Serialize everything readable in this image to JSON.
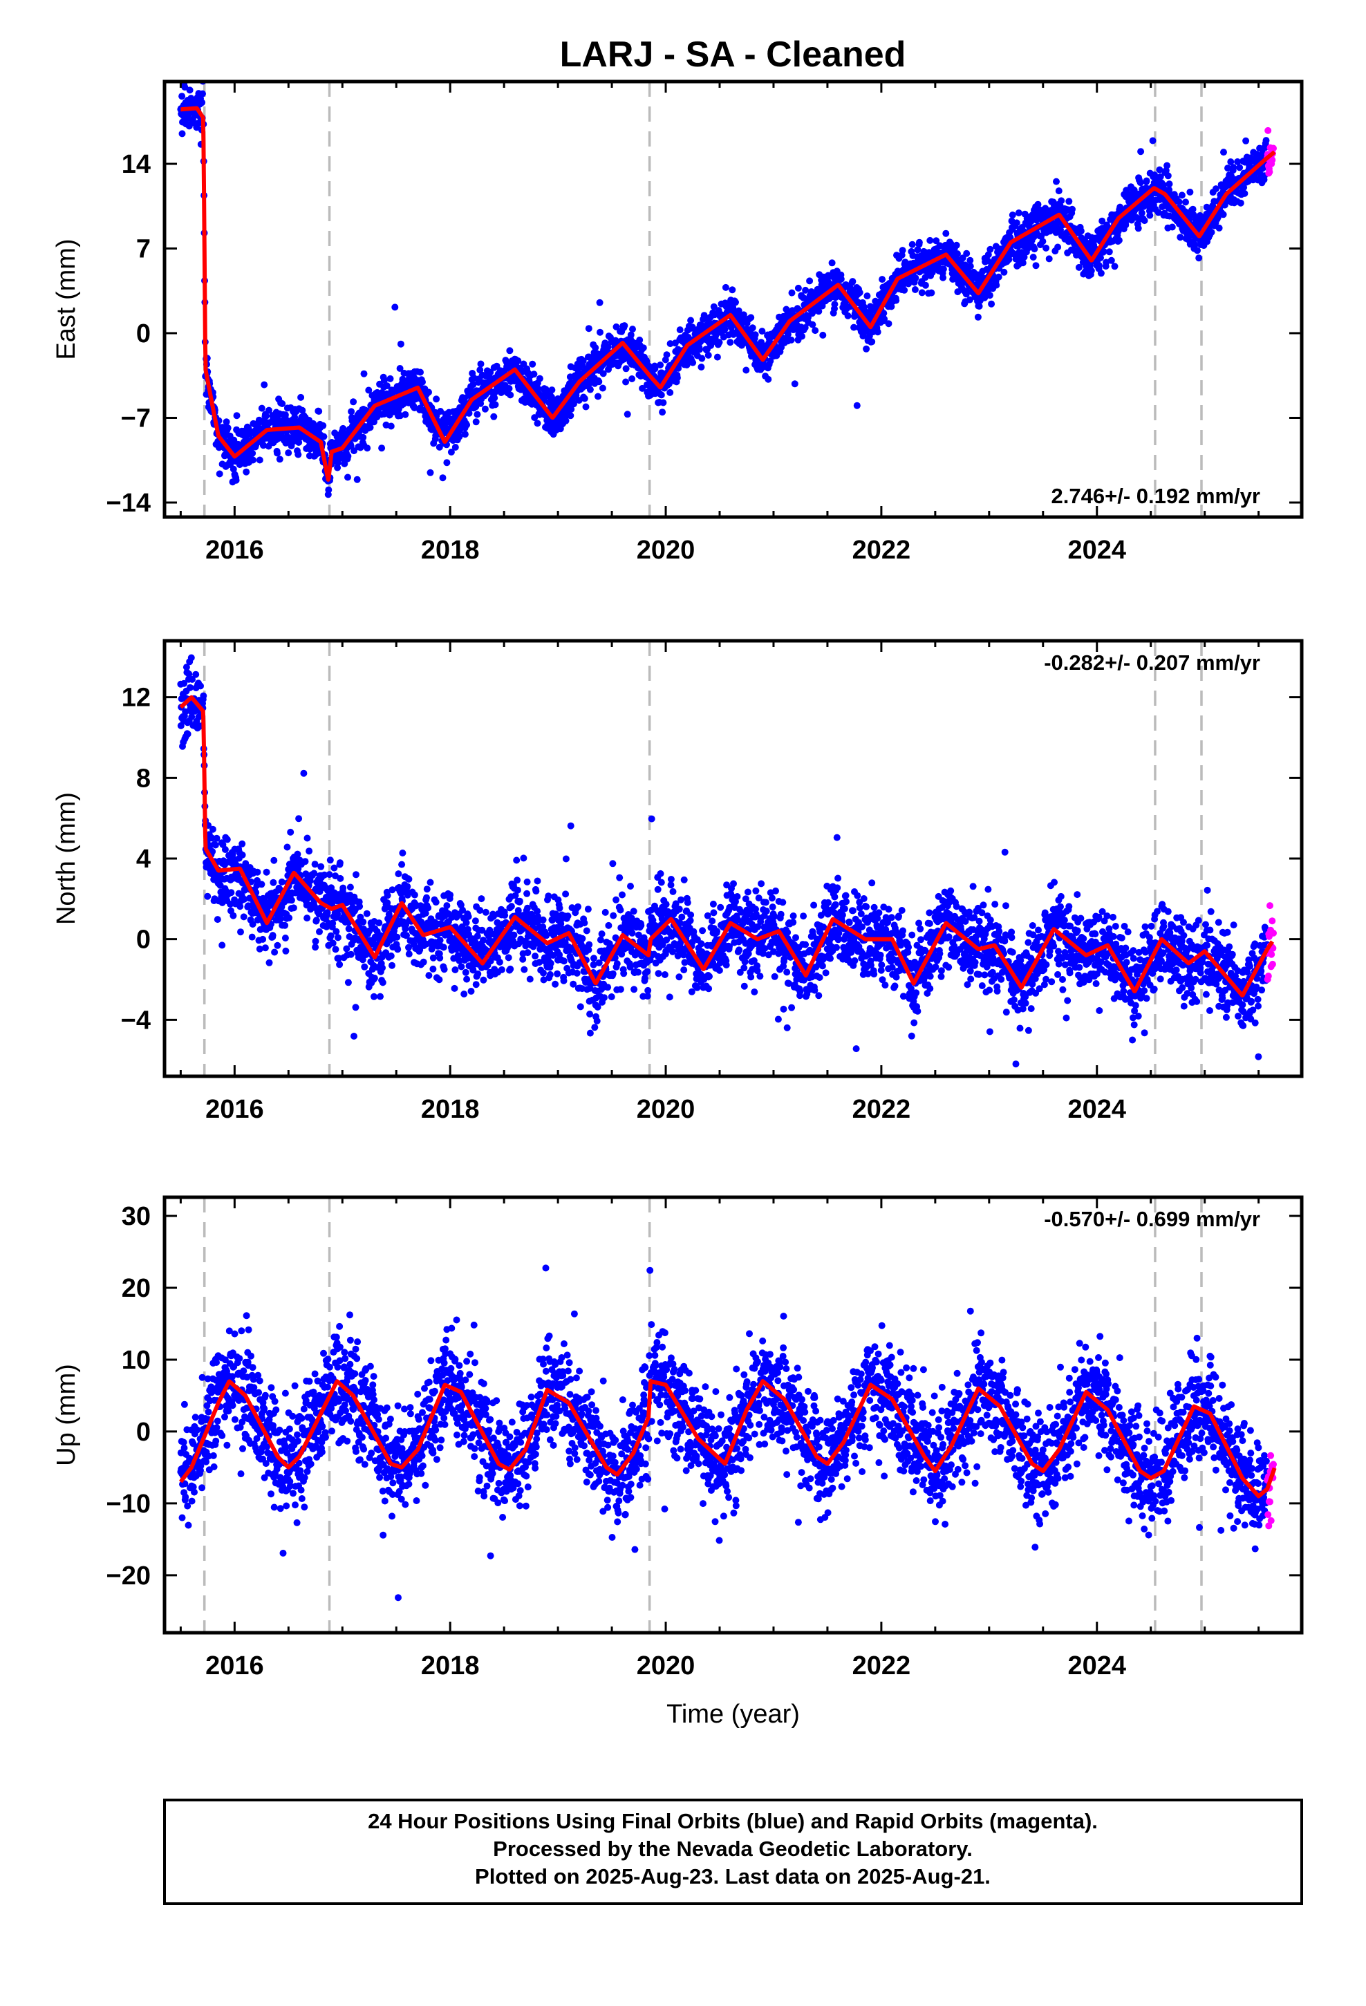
{
  "figure": {
    "title": "LARJ  - SA - Cleaned"
  },
  "colors": {
    "final_orbits": "#0000ff",
    "rapid_orbits": "#ff00ff",
    "model": "#ff0000",
    "event_lines": "#bbbbbb"
  },
  "footer": {
    "line1": "24 Hour Positions Using Final Orbits (blue) and Rapid Orbits (magenta).",
    "line2": "Processed by the Nevada Geodetic Laboratory.",
    "line3": "Plotted on 2025-Aug-23. Last data on 2025-Aug-21."
  },
  "chart_data": [
    {
      "type": "scatter",
      "title": "LARJ  - SA - Cleaned",
      "xlabel": "",
      "ylabel": "East (mm)",
      "rate": "2.746+/- 0.192 mm/yr",
      "rate_position": "bottom-right",
      "xlim": [
        2015.35,
        2025.9
      ],
      "ylim": [
        -15.2,
        20.8
      ],
      "xticks": [
        2016,
        2018,
        2020,
        2022,
        2024
      ],
      "yticks": [
        -14,
        -7,
        0,
        7,
        14
      ],
      "event_lines": [
        2015.72,
        2016.88,
        2019.85,
        2024.54,
        2024.97
      ],
      "series": [
        {
          "name": "Final Orbits",
          "color": "#0000ff",
          "x_range": [
            2015.5,
            2025.58
          ],
          "noise": 0.9
        },
        {
          "name": "Rapid Orbits",
          "color": "#ff00ff",
          "x_range": [
            2025.58,
            2025.64
          ]
        }
      ],
      "model_knots": [
        [
          2015.5,
          18.5
        ],
        [
          2015.65,
          18.6
        ],
        [
          2015.71,
          17.8
        ],
        [
          2015.73,
          -3.0
        ],
        [
          2015.85,
          -8.5
        ],
        [
          2016.0,
          -10.2
        ],
        [
          2016.3,
          -8.0
        ],
        [
          2016.6,
          -7.8
        ],
        [
          2016.8,
          -9.0
        ],
        [
          2016.87,
          -12.2
        ],
        [
          2016.9,
          -9.8
        ],
        [
          2017.0,
          -9.5
        ],
        [
          2017.3,
          -6.0
        ],
        [
          2017.7,
          -4.5
        ],
        [
          2017.95,
          -9.0
        ],
        [
          2018.2,
          -5.5
        ],
        [
          2018.6,
          -3.0
        ],
        [
          2018.95,
          -7.0
        ],
        [
          2019.2,
          -4.0
        ],
        [
          2019.6,
          -0.8
        ],
        [
          2019.85,
          -3.5
        ],
        [
          2019.95,
          -4.5
        ],
        [
          2020.2,
          -1.0
        ],
        [
          2020.6,
          1.5
        ],
        [
          2020.9,
          -2.2
        ],
        [
          2021.15,
          1.0
        ],
        [
          2021.6,
          4.0
        ],
        [
          2021.9,
          0.5
        ],
        [
          2022.15,
          4.5
        ],
        [
          2022.6,
          6.5
        ],
        [
          2022.9,
          3.3
        ],
        [
          2023.2,
          7.5
        ],
        [
          2023.65,
          9.8
        ],
        [
          2023.95,
          6.0
        ],
        [
          2024.2,
          9.5
        ],
        [
          2024.53,
          12.0
        ],
        [
          2024.63,
          11.5
        ],
        [
          2024.95,
          8.0
        ],
        [
          2025.2,
          11.5
        ],
        [
          2025.58,
          14.5
        ],
        [
          2025.65,
          15.0
        ]
      ]
    },
    {
      "type": "scatter",
      "xlabel": "",
      "ylabel": "North (mm)",
      "rate": "-0.282+/- 0.207 mm/yr",
      "rate_position": "top-right",
      "xlim": [
        2015.35,
        2025.9
      ],
      "ylim": [
        -6.8,
        14.8
      ],
      "xticks": [
        2016,
        2018,
        2020,
        2022,
        2024
      ],
      "yticks": [
        -4,
        0,
        4,
        8,
        12
      ],
      "event_lines": [
        2015.72,
        2016.88,
        2019.85,
        2024.54,
        2024.97
      ],
      "series": [
        {
          "name": "Final Orbits",
          "color": "#0000ff",
          "x_range": [
            2015.5,
            2025.58
          ],
          "noise": 1.0
        },
        {
          "name": "Rapid Orbits",
          "color": "#ff00ff",
          "x_range": [
            2025.58,
            2025.64
          ]
        }
      ],
      "model_knots": [
        [
          2015.5,
          11.5
        ],
        [
          2015.6,
          12.0
        ],
        [
          2015.71,
          11.3
        ],
        [
          2015.73,
          4.5
        ],
        [
          2015.85,
          3.4
        ],
        [
          2016.05,
          3.5
        ],
        [
          2016.3,
          0.8
        ],
        [
          2016.55,
          3.3
        ],
        [
          2016.8,
          1.8
        ],
        [
          2016.9,
          1.5
        ],
        [
          2017.0,
          1.7
        ],
        [
          2017.3,
          -0.9
        ],
        [
          2017.55,
          1.8
        ],
        [
          2017.75,
          0.2
        ],
        [
          2018.0,
          0.6
        ],
        [
          2018.3,
          -1.2
        ],
        [
          2018.6,
          1.1
        ],
        [
          2018.9,
          -0.2
        ],
        [
          2019.1,
          0.3
        ],
        [
          2019.35,
          -2.2
        ],
        [
          2019.6,
          0.2
        ],
        [
          2019.84,
          -0.8
        ],
        [
          2019.86,
          0.0
        ],
        [
          2020.05,
          1.0
        ],
        [
          2020.35,
          -1.5
        ],
        [
          2020.6,
          0.8
        ],
        [
          2020.85,
          0.0
        ],
        [
          2021.05,
          0.4
        ],
        [
          2021.3,
          -1.8
        ],
        [
          2021.55,
          1.0
        ],
        [
          2021.85,
          0.0
        ],
        [
          2022.1,
          0.0
        ],
        [
          2022.3,
          -2.2
        ],
        [
          2022.6,
          0.8
        ],
        [
          2022.9,
          -0.5
        ],
        [
          2023.05,
          -0.3
        ],
        [
          2023.3,
          -2.4
        ],
        [
          2023.6,
          0.5
        ],
        [
          2023.9,
          -0.8
        ],
        [
          2024.1,
          -0.3
        ],
        [
          2024.35,
          -2.6
        ],
        [
          2024.6,
          0.0
        ],
        [
          2024.85,
          -1.2
        ],
        [
          2025.0,
          -0.6
        ],
        [
          2025.35,
          -2.8
        ],
        [
          2025.58,
          -0.5
        ],
        [
          2025.63,
          -0.1
        ]
      ]
    },
    {
      "type": "scatter",
      "xlabel": "Time (year)",
      "ylabel": "Up (mm)",
      "rate": "-0.570+/- 0.699 mm/yr",
      "rate_position": "top-right",
      "xlim": [
        2015.35,
        2025.9
      ],
      "ylim": [
        -28,
        32.6
      ],
      "xticks": [
        2016,
        2018,
        2020,
        2022,
        2024
      ],
      "yticks": [
        -20,
        -10,
        0,
        10,
        20,
        30
      ],
      "event_lines": [
        2015.72,
        2016.88,
        2019.85,
        2024.54,
        2024.97
      ],
      "series": [
        {
          "name": "Final Orbits",
          "color": "#0000ff",
          "x_range": [
            2015.5,
            2025.58
          ],
          "noise": 3.6
        },
        {
          "name": "Rapid Orbits",
          "color": "#ff00ff",
          "x_range": [
            2025.58,
            2025.64
          ]
        }
      ],
      "model_knots": [
        [
          2015.5,
          -7.0
        ],
        [
          2015.6,
          -5.0
        ],
        [
          2015.85,
          4.0
        ],
        [
          2015.95,
          7.0
        ],
        [
          2016.1,
          5.0
        ],
        [
          2016.4,
          -3.5
        ],
        [
          2016.5,
          -5.0
        ],
        [
          2016.6,
          -3.5
        ],
        [
          2016.95,
          7.0
        ],
        [
          2017.1,
          5.0
        ],
        [
          2017.45,
          -4.5
        ],
        [
          2017.55,
          -5.0
        ],
        [
          2017.7,
          -2.5
        ],
        [
          2017.95,
          6.5
        ],
        [
          2018.1,
          5.5
        ],
        [
          2018.45,
          -4.5
        ],
        [
          2018.55,
          -5.3
        ],
        [
          2018.7,
          -2.5
        ],
        [
          2018.9,
          5.8
        ],
        [
          2019.1,
          4.0
        ],
        [
          2019.45,
          -5.0
        ],
        [
          2019.55,
          -6.0
        ],
        [
          2019.7,
          -3.0
        ],
        [
          2019.84,
          2.0
        ],
        [
          2019.86,
          7.0
        ],
        [
          2020.0,
          6.5
        ],
        [
          2020.3,
          -1.0
        ],
        [
          2020.55,
          -4.5
        ],
        [
          2020.75,
          3.0
        ],
        [
          2020.9,
          7.0
        ],
        [
          2021.1,
          4.5
        ],
        [
          2021.4,
          -3.5
        ],
        [
          2021.5,
          -4.5
        ],
        [
          2021.65,
          -1.5
        ],
        [
          2021.9,
          6.5
        ],
        [
          2022.1,
          4.5
        ],
        [
          2022.4,
          -3.5
        ],
        [
          2022.5,
          -5.5
        ],
        [
          2022.65,
          -2.0
        ],
        [
          2022.9,
          6.0
        ],
        [
          2023.1,
          3.5
        ],
        [
          2023.4,
          -4.5
        ],
        [
          2023.5,
          -5.5
        ],
        [
          2023.65,
          -2.5
        ],
        [
          2023.9,
          5.5
        ],
        [
          2024.1,
          3.0
        ],
        [
          2024.4,
          -5.5
        ],
        [
          2024.5,
          -6.5
        ],
        [
          2024.62,
          -5.5
        ],
        [
          2024.9,
          3.5
        ],
        [
          2025.05,
          2.5
        ],
        [
          2025.35,
          -6.5
        ],
        [
          2025.5,
          -9.0
        ],
        [
          2025.58,
          -8.0
        ],
        [
          2025.65,
          -5.0
        ]
      ]
    }
  ]
}
